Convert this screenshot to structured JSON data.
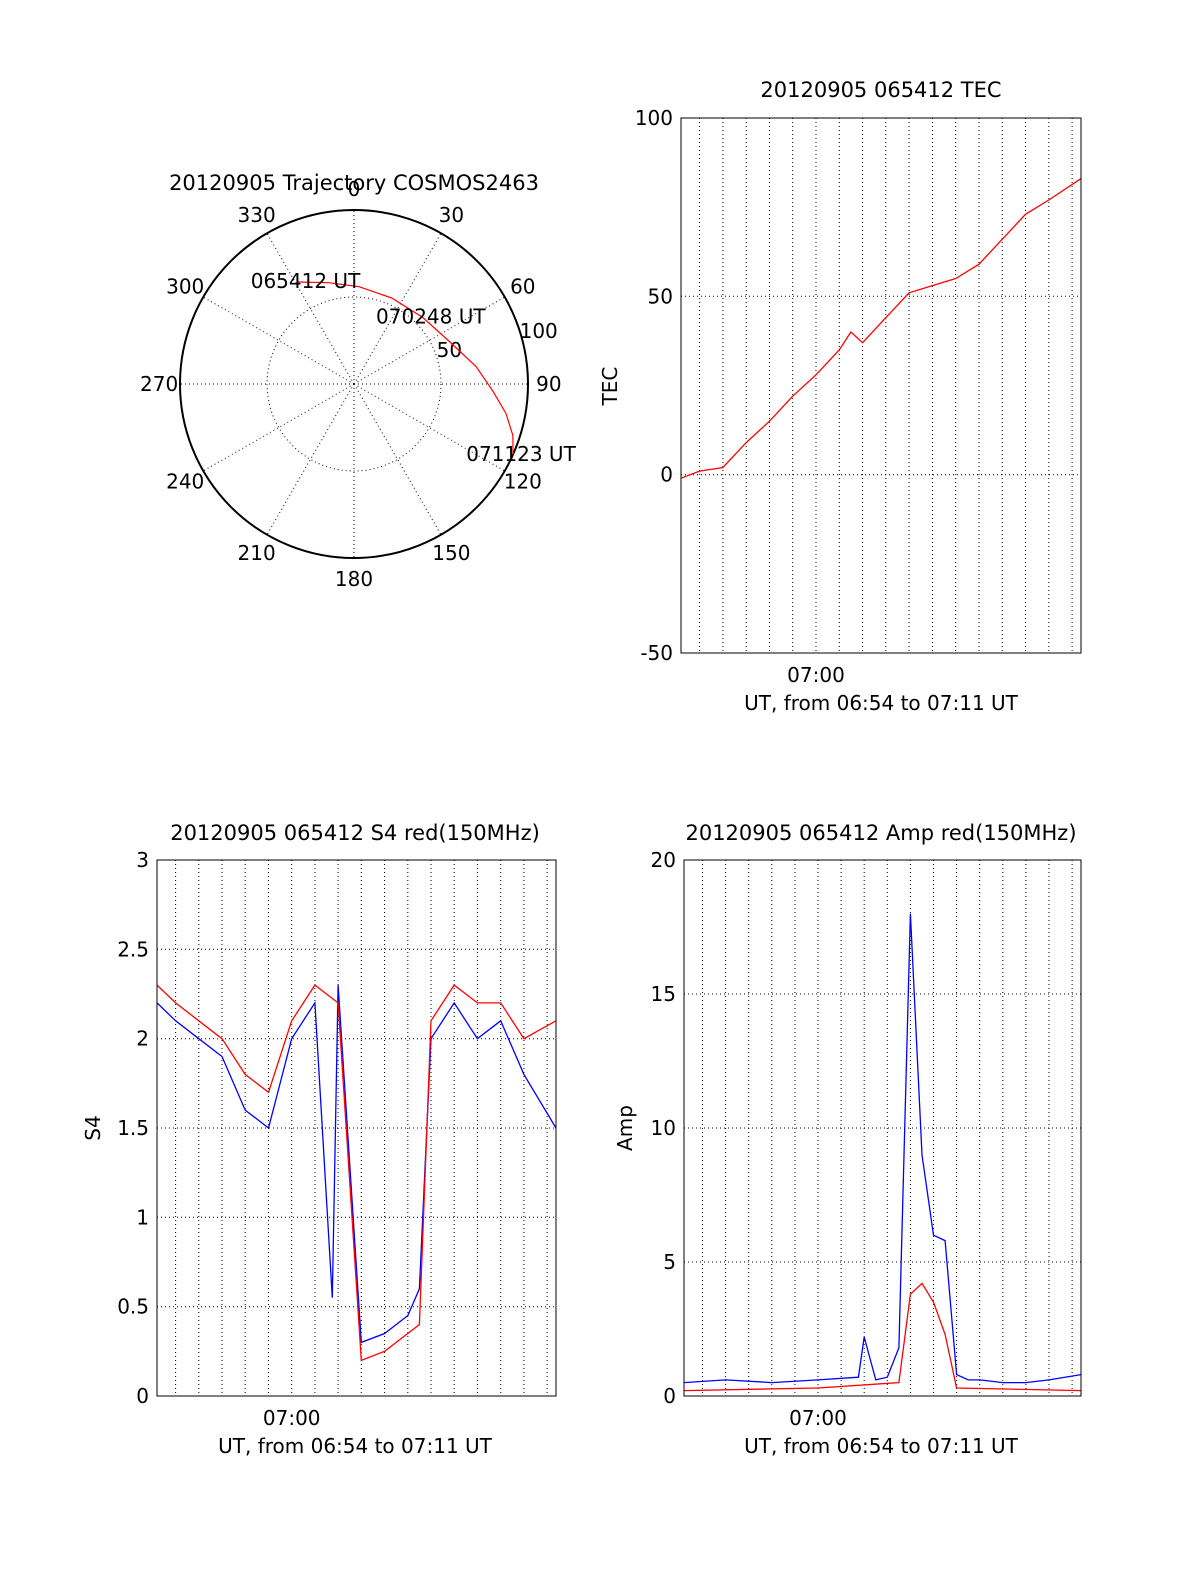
{
  "chart_data": [
    {
      "id": "trajectory",
      "type": "polar",
      "title": "20120905 Trajectory COSMOS2463",
      "angle_labels": [
        "0",
        "30",
        "60",
        "90",
        "120",
        "150",
        "180",
        "210",
        "240",
        "270",
        "300",
        "330"
      ],
      "radial_labels": [
        "50",
        "100"
      ],
      "radial_range": [
        0,
        100
      ],
      "grid": true,
      "series": [
        {
          "color": "#ff0000",
          "points": [
            [
              331,
              67
            ],
            [
              346,
              60
            ],
            [
              3,
              56
            ],
            [
              24,
              54
            ],
            [
              46,
              55
            ],
            [
              66,
              60
            ],
            [
              82,
              71
            ],
            [
              93,
              80
            ],
            [
              101,
              89
            ],
            [
              108,
              96
            ],
            [
              114,
              100
            ]
          ]
        }
      ],
      "annotations": [
        {
          "text": "065412 UT",
          "at_azimuth": 331,
          "at_elevation": 67
        },
        {
          "text": "070248 UT",
          "at_azimuth": 46,
          "at_elevation": 55
        },
        {
          "text": "071123 UT",
          "at_azimuth": 114,
          "at_elevation": 100
        }
      ]
    },
    {
      "id": "tec",
      "type": "line",
      "title": "20120905 065412 TEC",
      "ylabel": "TEC",
      "xlabel": "UT, from 06:54 to 07:11 UT",
      "xlim": [
        "06:54:12",
        "07:11:23"
      ],
      "ylim": [
        -50,
        100
      ],
      "yticks": [
        "100",
        "50",
        "0",
        "-50"
      ],
      "xticks": [
        {
          "label": "07:00",
          "value": "07:00"
        }
      ],
      "grid": true,
      "series": [
        {
          "color": "#ff0000",
          "x": [
            "06:54:12",
            "06:55:00",
            "06:56:00",
            "06:57:00",
            "06:58:00",
            "06:59:00",
            "07:00:00",
            "07:01:00",
            "07:01:30",
            "07:02:00",
            "07:03:00",
            "07:04:00",
            "07:05:00",
            "07:06:00",
            "07:07:00",
            "07:08:00",
            "07:09:00",
            "07:10:00",
            "07:11:23"
          ],
          "values": [
            -1,
            1,
            2,
            9,
            15,
            22,
            28,
            35,
            40,
            37,
            44,
            51,
            53,
            55,
            59,
            66,
            73,
            77,
            83
          ]
        }
      ]
    },
    {
      "id": "s4",
      "type": "line",
      "title": "20120905 065412 S4 red(150MHz)",
      "ylabel": "S4",
      "xlabel": "UT, from 06:54 to 07:11 UT",
      "xlim": [
        "06:54:12",
        "07:11:23"
      ],
      "ylim": [
        0,
        3
      ],
      "yticks": [
        "3",
        "2.5",
        "2",
        "1.5",
        "1",
        "0.5",
        "0"
      ],
      "xticks": [
        {
          "label": "07:00",
          "value": "07:00"
        }
      ],
      "grid": true,
      "series": [
        {
          "color": "#0000ff",
          "x": [
            "06:54:12",
            "06:55:00",
            "06:56:00",
            "06:57:00",
            "06:58:00",
            "06:59:00",
            "07:00:00",
            "07:01:00",
            "07:01:45",
            "07:02:00",
            "07:03:00",
            "07:04:00",
            "07:05:00",
            "07:05:30",
            "07:06:00",
            "07:07:00",
            "07:08:00",
            "07:09:00",
            "07:10:00",
            "07:11:23"
          ],
          "values": [
            2.2,
            2.1,
            2.0,
            1.9,
            1.6,
            1.5,
            2.0,
            2.2,
            0.55,
            2.3,
            0.3,
            0.35,
            0.45,
            0.6,
            2.0,
            2.2,
            2.0,
            2.1,
            1.8,
            1.5
          ]
        },
        {
          "color": "#ff0000",
          "x": [
            "06:54:12",
            "06:55:00",
            "06:56:00",
            "06:57:00",
            "06:58:00",
            "06:59:00",
            "07:00:00",
            "07:01:00",
            "07:02:00",
            "07:03:00",
            "07:04:00",
            "07:05:00",
            "07:05:30",
            "07:06:00",
            "07:07:00",
            "07:08:00",
            "07:09:00",
            "07:10:00",
            "07:11:23"
          ],
          "values": [
            2.3,
            2.2,
            2.1,
            2.0,
            1.8,
            1.7,
            2.1,
            2.3,
            2.2,
            0.2,
            0.25,
            0.35,
            0.4,
            2.1,
            2.3,
            2.2,
            2.2,
            2.0,
            2.1
          ]
        }
      ]
    },
    {
      "id": "amp",
      "type": "line",
      "title": "20120905 065412 Amp red(150MHz)",
      "ylabel": "Amp",
      "xlabel": "UT, from 06:54 to 07:11 UT",
      "xlim": [
        "06:54:12",
        "07:11:23"
      ],
      "ylim": [
        0,
        20
      ],
      "yticks": [
        "20",
        "15",
        "10",
        "5",
        "0"
      ],
      "xticks": [
        {
          "label": "07:00",
          "value": "07:00"
        }
      ],
      "grid": true,
      "series": [
        {
          "color": "#0000ff",
          "x": [
            "06:54:12",
            "06:56:00",
            "06:58:00",
            "07:00:00",
            "07:01:45",
            "07:02:00",
            "07:02:30",
            "07:03:00",
            "07:03:30",
            "07:04:00",
            "07:04:30",
            "07:05:00",
            "07:05:30",
            "07:06:00",
            "07:06:30",
            "07:07:00",
            "07:08:00",
            "07:09:00",
            "07:10:00",
            "07:11:23"
          ],
          "values": [
            0.5,
            0.6,
            0.5,
            0.6,
            0.7,
            2.2,
            0.6,
            0.7,
            1.8,
            18,
            9,
            6,
            5.8,
            0.8,
            0.6,
            0.6,
            0.5,
            0.5,
            0.6,
            0.8
          ]
        },
        {
          "color": "#ff0000",
          "x": [
            "06:54:12",
            "07:00:00",
            "07:03:30",
            "07:04:00",
            "07:04:30",
            "07:05:00",
            "07:05:30",
            "07:06:00",
            "07:11:23"
          ],
          "values": [
            0.2,
            0.3,
            0.5,
            3.8,
            4.2,
            3.5,
            2.3,
            0.3,
            0.2
          ]
        }
      ]
    }
  ]
}
